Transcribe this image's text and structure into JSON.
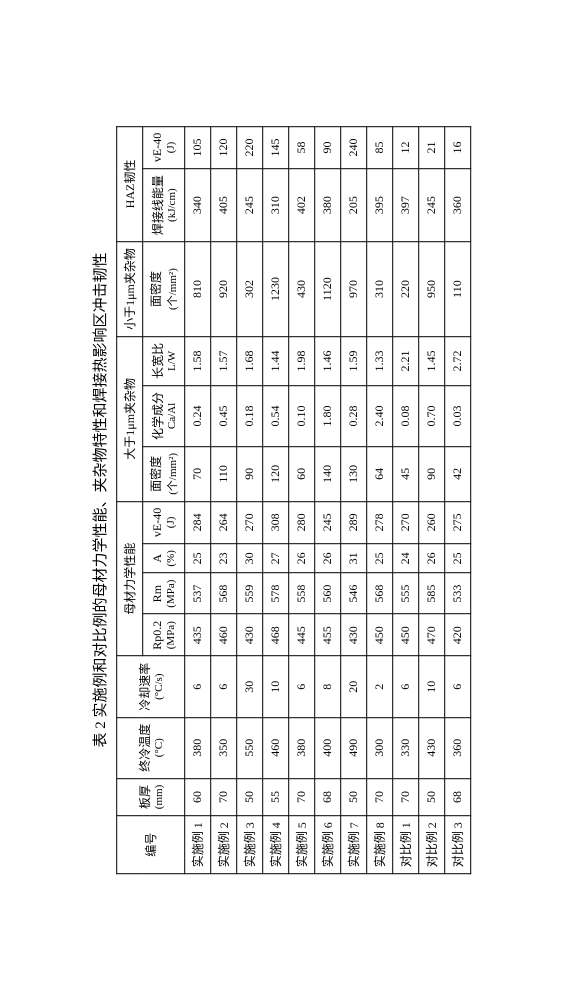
{
  "title": "表 2  实施例和对比例的母材力学性能、夹杂物特性和焊接热影响区冲击韧性",
  "headers": {
    "group1": "编号",
    "group2": "板厚",
    "group2_unit": "(mm)",
    "group3": "终冷温度",
    "group3_unit": "(°C)",
    "group4": "冷却速率",
    "group4_unit": "(°C/s)",
    "group5": "母材力学性能",
    "group6": "大于1μm夹杂物",
    "group7": "小于1μm夹杂物",
    "group8": "HAZ韧性",
    "c5": "Rp0.2",
    "c5_unit": "(MPa)",
    "c6": "Rm",
    "c6_unit": "(MPa)",
    "c7": "A",
    "c7_unit": "(%)",
    "c8": "vE-40",
    "c8_unit": "(J)",
    "c9": "面密度",
    "c9_unit": "(个/mm²)",
    "c10": "化学成分",
    "c10_unit": "Ca/Al",
    "c11": "长宽比",
    "c11_unit": "L/W",
    "c12": "面密度",
    "c12_unit": "(个/mm²)",
    "c13": "焊接线能量",
    "c13_unit": "(kJ/cm)",
    "c14": "vE-40",
    "c14_unit": "(J)"
  },
  "rows": [
    {
      "id": "实施例 1",
      "thk": "60",
      "ft": "380",
      "cr": "6",
      "rp": "435",
      "rm": "537",
      "a": "25",
      "ve": "284",
      "d1": "70",
      "ca": "0.24",
      "lw": "1.58",
      "d2": "810",
      "we": "340",
      "haz": "105"
    },
    {
      "id": "实施例 2",
      "thk": "70",
      "ft": "350",
      "cr": "6",
      "rp": "460",
      "rm": "568",
      "a": "23",
      "ve": "264",
      "d1": "110",
      "ca": "0.45",
      "lw": "1.57",
      "d2": "920",
      "we": "405",
      "haz": "120"
    },
    {
      "id": "实施例 3",
      "thk": "50",
      "ft": "550",
      "cr": "30",
      "rp": "430",
      "rm": "559",
      "a": "30",
      "ve": "270",
      "d1": "90",
      "ca": "0.18",
      "lw": "1.68",
      "d2": "302",
      "we": "245",
      "haz": "220"
    },
    {
      "id": "实施例 4",
      "thk": "55",
      "ft": "460",
      "cr": "10",
      "rp": "468",
      "rm": "578",
      "a": "27",
      "ve": "308",
      "d1": "120",
      "ca": "0.54",
      "lw": "1.44",
      "d2": "1230",
      "we": "310",
      "haz": "145"
    },
    {
      "id": "实施例 5",
      "thk": "70",
      "ft": "380",
      "cr": "6",
      "rp": "445",
      "rm": "558",
      "a": "26",
      "ve": "280",
      "d1": "60",
      "ca": "0.10",
      "lw": "1.98",
      "d2": "430",
      "we": "402",
      "haz": "58"
    },
    {
      "id": "实施例 6",
      "thk": "68",
      "ft": "400",
      "cr": "8",
      "rp": "455",
      "rm": "560",
      "a": "26",
      "ve": "245",
      "d1": "140",
      "ca": "1.80",
      "lw": "1.46",
      "d2": "1120",
      "we": "380",
      "haz": "90"
    },
    {
      "id": "实施例 7",
      "thk": "50",
      "ft": "490",
      "cr": "20",
      "rp": "430",
      "rm": "546",
      "a": "31",
      "ve": "289",
      "d1": "130",
      "ca": "0.28",
      "lw": "1.59",
      "d2": "970",
      "we": "205",
      "haz": "240"
    },
    {
      "id": "实施例 8",
      "thk": "70",
      "ft": "300",
      "cr": "2",
      "rp": "450",
      "rm": "568",
      "a": "25",
      "ve": "278",
      "d1": "64",
      "ca": "2.40",
      "lw": "1.33",
      "d2": "310",
      "we": "395",
      "haz": "85"
    },
    {
      "id": "对比例 1",
      "thk": "70",
      "ft": "330",
      "cr": "6",
      "rp": "450",
      "rm": "555",
      "a": "24",
      "ve": "270",
      "d1": "45",
      "ca": "0.08",
      "lw": "2.21",
      "d2": "220",
      "we": "397",
      "haz": "12"
    },
    {
      "id": "对比例 2",
      "thk": "50",
      "ft": "430",
      "cr": "10",
      "rp": "470",
      "rm": "585",
      "a": "26",
      "ve": "260",
      "d1": "90",
      "ca": "0.70",
      "lw": "1.45",
      "d2": "950",
      "we": "245",
      "haz": "21"
    },
    {
      "id": "对比例 3",
      "thk": "68",
      "ft": "360",
      "cr": "6",
      "rp": "420",
      "rm": "533",
      "a": "25",
      "ve": "275",
      "d1": "42",
      "ca": "0.03",
      "lw": "2.72",
      "d2": "110",
      "we": "360",
      "haz": "16"
    }
  ]
}
